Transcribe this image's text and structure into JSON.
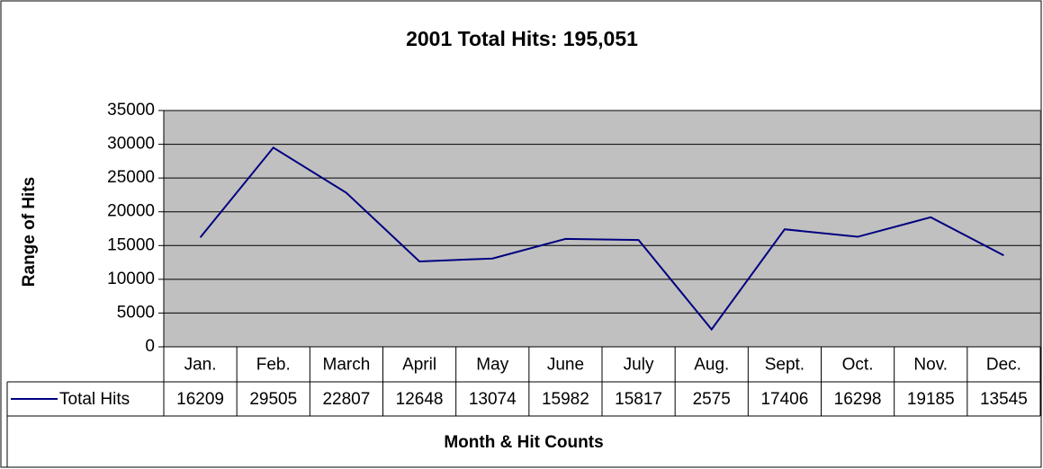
{
  "chart_data": {
    "type": "line",
    "title": "2001 Total Hits:  195,051",
    "y_label": "Range of Hits",
    "x_label": "Month & Hit Counts",
    "categories": [
      "Jan.",
      "Feb.",
      "March",
      "April",
      "May",
      "June",
      "July",
      "Aug.",
      "Sept.",
      "Oct.",
      "Nov.",
      "Dec."
    ],
    "series": [
      {
        "name": "Total Hits",
        "color": "#000080",
        "values": [
          16209,
          29505,
          22807,
          12648,
          13074,
          15982,
          15817,
          2575,
          17406,
          16298,
          19185,
          13545
        ]
      }
    ],
    "ylim": [
      0,
      35000
    ],
    "yticks": [
      0,
      5000,
      10000,
      15000,
      20000,
      25000,
      30000,
      35000
    ],
    "grid": true,
    "plot_background": "#c0c0c0",
    "data_table": true
  }
}
